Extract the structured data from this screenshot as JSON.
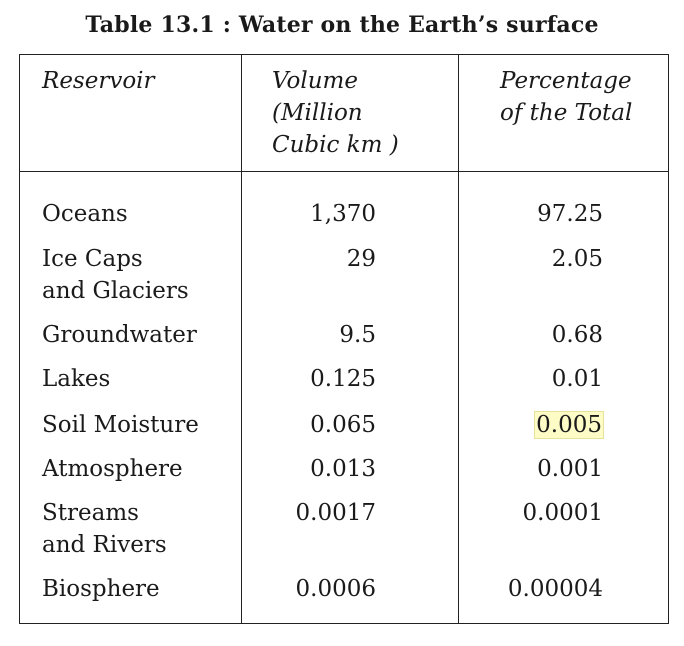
{
  "title": "Table 13.1 : Water on the Earth’s surface",
  "headers": {
    "reservoir": "Reservoir",
    "volume": "Volume\n(Million\nCubic km )",
    "percentage": "Percentage\nof the Total"
  },
  "rows": [
    {
      "reservoir": "Oceans",
      "volume": "1,370",
      "percentage": "97.25"
    },
    {
      "reservoir": "Ice Caps\nand Glaciers",
      "volume": "29",
      "percentage": "2.05"
    },
    {
      "reservoir": "Groundwater",
      "volume": "9.5",
      "percentage": "0.68"
    },
    {
      "reservoir": "Lakes",
      "volume": "0.125",
      "percentage": "0.01"
    },
    {
      "reservoir": "Soil Moisture",
      "volume": "0.065",
      "percentage": "0.005"
    },
    {
      "reservoir": "Atmosphere",
      "volume": "0.013",
      "percentage": "0.001"
    },
    {
      "reservoir": "Streams\nand Rivers",
      "volume": "0.0017",
      "percentage": "0.0001"
    },
    {
      "reservoir": "Biosphere",
      "volume": "0.0006",
      "percentage": "0.00004"
    }
  ],
  "highlight_color": "#fdfbc6"
}
